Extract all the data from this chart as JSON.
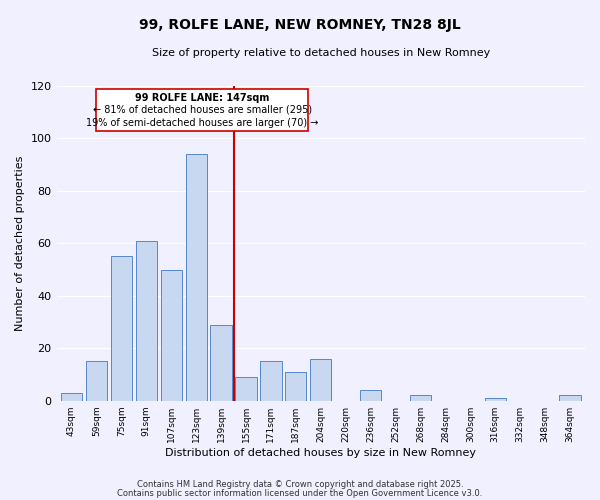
{
  "title": "99, ROLFE LANE, NEW ROMNEY, TN28 8JL",
  "subtitle": "Size of property relative to detached houses in New Romney",
  "xlabel": "Distribution of detached houses by size in New Romney",
  "ylabel": "Number of detached properties",
  "bar_labels": [
    "43sqm",
    "59sqm",
    "75sqm",
    "91sqm",
    "107sqm",
    "123sqm",
    "139sqm",
    "155sqm",
    "171sqm",
    "187sqm",
    "204sqm",
    "220sqm",
    "236sqm",
    "252sqm",
    "268sqm",
    "284sqm",
    "300sqm",
    "316sqm",
    "332sqm",
    "348sqm",
    "364sqm"
  ],
  "bar_values": [
    3,
    15,
    55,
    61,
    50,
    94,
    29,
    9,
    15,
    11,
    16,
    0,
    4,
    0,
    2,
    0,
    0,
    1,
    0,
    0,
    2
  ],
  "bar_color": "#c8d8f0",
  "bar_edge_color": "#5588cc",
  "vline_color": "#cc0000",
  "annotation_line1": "99 ROLFE LANE: 147sqm",
  "annotation_line2": "← 81% of detached houses are smaller (295)",
  "annotation_line3": "19% of semi-detached houses are larger (70) →",
  "footer_line1": "Contains HM Land Registry data © Crown copyright and database right 2025.",
  "footer_line2": "Contains public sector information licensed under the Open Government Licence v3.0.",
  "ylim": [
    0,
    120
  ],
  "yticks": [
    0,
    20,
    40,
    60,
    80,
    100,
    120
  ],
  "bg_color": "#f0f0ff",
  "grid_color": "#ffffff"
}
